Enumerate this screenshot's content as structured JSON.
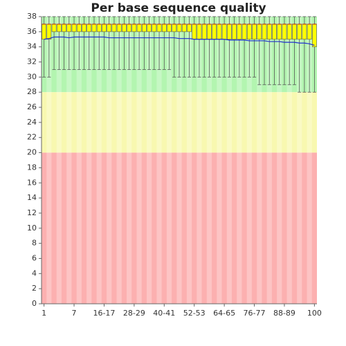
{
  "chart_data": {
    "type": "box",
    "title": "Per base sequence quality",
    "categories": [
      "1",
      null,
      null,
      null,
      null,
      null,
      "7",
      null,
      null,
      null,
      null,
      null,
      "16-17",
      null,
      null,
      null,
      null,
      null,
      "28-29",
      null,
      null,
      null,
      null,
      null,
      "40-41",
      null,
      null,
      null,
      null,
      null,
      "52-53",
      null,
      null,
      null,
      null,
      null,
      "64-65",
      null,
      null,
      null,
      null,
      null,
      "76-77",
      null,
      null,
      null,
      null,
      null,
      "88-89",
      null,
      null,
      null,
      null,
      null,
      "100"
    ],
    "lower": [
      30,
      30,
      31,
      31,
      31,
      31,
      31,
      31,
      31,
      31,
      31,
      31,
      31,
      31,
      31,
      31,
      31,
      31,
      31,
      31,
      31,
      31,
      31,
      31,
      31,
      31,
      30,
      30,
      30,
      30,
      30,
      30,
      30,
      30,
      30,
      30,
      30,
      30,
      30,
      30,
      30,
      30,
      30,
      29,
      29,
      29,
      29,
      29,
      29,
      29,
      29,
      28,
      28,
      28,
      28
    ],
    "q1": [
      35,
      35,
      36,
      36,
      36,
      36,
      36,
      36,
      36,
      36,
      36,
      36,
      36,
      36,
      36,
      36,
      36,
      36,
      36,
      36,
      36,
      36,
      36,
      36,
      36,
      36,
      36,
      36,
      36,
      36,
      35,
      35,
      35,
      35,
      35,
      35,
      35,
      35,
      35,
      35,
      35,
      35,
      35,
      35,
      35,
      35,
      35,
      35,
      35,
      35,
      35,
      35,
      35,
      35,
      34
    ],
    "median": [
      37,
      37,
      37,
      37,
      37,
      37,
      37,
      37,
      37,
      37,
      37,
      37,
      37,
      37,
      37,
      37,
      37,
      37,
      37,
      37,
      37,
      37,
      37,
      37,
      37,
      37,
      37,
      37,
      37,
      37,
      37,
      37,
      37,
      37,
      37,
      37,
      37,
      37,
      37,
      37,
      37,
      37,
      37,
      37,
      37,
      37,
      37,
      37,
      37,
      37,
      37,
      37,
      37,
      37,
      37
    ],
    "q3": [
      37,
      37,
      37,
      37,
      37,
      37,
      37,
      37,
      37,
      37,
      37,
      37,
      37,
      37,
      37,
      37,
      37,
      37,
      37,
      37,
      37,
      37,
      37,
      37,
      37,
      37,
      37,
      37,
      37,
      37,
      37,
      37,
      37,
      37,
      37,
      37,
      37,
      37,
      37,
      37,
      37,
      37,
      37,
      37,
      37,
      37,
      37,
      37,
      37,
      37,
      37,
      37,
      37,
      37,
      37
    ],
    "upper": [
      38,
      38,
      38,
      38,
      38,
      38,
      38,
      38,
      38,
      38,
      38,
      38,
      38,
      38,
      38,
      38,
      38,
      38,
      38,
      38,
      38,
      38,
      38,
      38,
      38,
      38,
      38,
      38,
      38,
      38,
      38,
      38,
      38,
      38,
      38,
      38,
      38,
      38,
      38,
      38,
      38,
      38,
      38,
      38,
      38,
      38,
      38,
      38,
      38,
      38,
      38,
      38,
      38,
      38,
      38
    ],
    "mean": [
      35.0,
      35.1,
      35.3,
      35.3,
      35.3,
      35.2,
      35.3,
      35.3,
      35.3,
      35.3,
      35.3,
      35.3,
      35.3,
      35.2,
      35.2,
      35.2,
      35.2,
      35.2,
      35.2,
      35.2,
      35.2,
      35.2,
      35.2,
      35.2,
      35.2,
      35.2,
      35.2,
      35.1,
      35.1,
      35.1,
      35.0,
      35.0,
      35.0,
      35.0,
      35.0,
      35.0,
      35.0,
      34.9,
      34.9,
      34.9,
      34.9,
      34.8,
      34.8,
      34.8,
      34.8,
      34.7,
      34.7,
      34.7,
      34.6,
      34.6,
      34.6,
      34.5,
      34.5,
      34.4,
      34.2
    ],
    "box_color": "#ffff00",
    "mean_color": "#1f2fd0",
    "whisker_color": "#555555",
    "zones": [
      {
        "from": 28,
        "to": 38,
        "color": "#b3f5b0"
      },
      {
        "from": 20,
        "to": 28,
        "color": "#f8f8b0"
      },
      {
        "from": 0,
        "to": 20,
        "color": "#fcb0b0"
      }
    ],
    "ylim": [
      0,
      38
    ],
    "yticks": [
      0,
      2,
      4,
      6,
      8,
      10,
      12,
      14,
      16,
      18,
      20,
      22,
      24,
      26,
      28,
      30,
      32,
      34,
      36,
      38
    ]
  }
}
